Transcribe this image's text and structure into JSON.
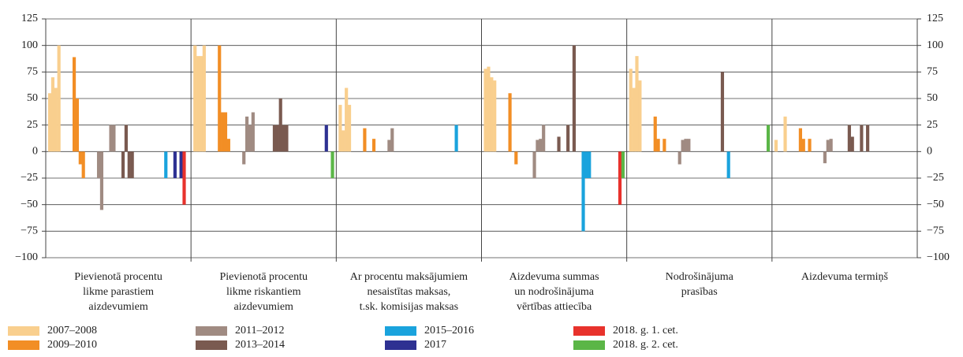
{
  "chart_data": {
    "type": "bar",
    "categories": [
      [
        "Pievienotā procentu",
        "likme parastiem",
        "aizdevumiem"
      ],
      [
        "Pievienotā procentu",
        "likme riskantiem",
        "aizdevumiem"
      ],
      [
        "Ar procentu maksājumiem",
        "nesaistītas maksas,",
        "t.sk. komisijas maksas"
      ],
      [
        "Aizdevuma summas",
        "un nodrošinājuma",
        "vērtības attiecība"
      ],
      [
        "Nodrošinājuma",
        "prasības"
      ],
      [
        "Aizdevuma termiņš"
      ]
    ],
    "ylim": [
      -100,
      125
    ],
    "yticks": [
      {
        "value": -100,
        "label": "−100"
      },
      {
        "value": -75,
        "label": "−75"
      },
      {
        "value": -50,
        "label": "−50"
      },
      {
        "value": -25,
        "label": "−25"
      },
      0,
      25,
      50,
      75,
      100,
      125
    ],
    "grid": true,
    "series": [
      {
        "name": "2007–2008",
        "color": "#f9cf8e",
        "values": [
          [
            55,
            70,
            60,
            100,
            0,
            0,
            0,
            0
          ],
          [
            100,
            90,
            90,
            100,
            0,
            0,
            0,
            0
          ],
          [
            44,
            20,
            60,
            44,
            0,
            0,
            0,
            0
          ],
          [
            78,
            80,
            70,
            67,
            0,
            0,
            0,
            0
          ],
          [
            78,
            60,
            90,
            67,
            0,
            0,
            0,
            0
          ],
          [
            11,
            0,
            0,
            33,
            0,
            0,
            0,
            0
          ]
        ]
      },
      {
        "name": "2009–2010",
        "color": "#f28e25",
        "values": [
          [
            89,
            50,
            -12,
            -25,
            0,
            0,
            0,
            0
          ],
          [
            100,
            37,
            37,
            12,
            0,
            0,
            0,
            0
          ],
          [
            22,
            0,
            0,
            12,
            0,
            0,
            0,
            0
          ],
          [
            55,
            0,
            -12,
            0,
            0,
            0,
            0,
            0
          ],
          [
            33,
            12,
            0,
            12,
            0,
            0,
            0,
            0
          ],
          [
            22,
            12,
            0,
            12,
            0,
            0,
            0,
            0
          ]
        ]
      },
      {
        "name": "2011–2012",
        "color": "#a08b82",
        "values": [
          [
            -25,
            -55,
            0,
            0,
            25,
            25,
            0,
            0
          ],
          [
            -12,
            33,
            25,
            37,
            0,
            0,
            0,
            0
          ],
          [
            11,
            22,
            0,
            0,
            0,
            0,
            0,
            0
          ],
          [
            -25,
            11,
            12,
            25,
            0,
            0,
            0,
            0
          ],
          [
            -12,
            11,
            12,
            12,
            0,
            0,
            0,
            0
          ],
          [
            -11,
            11,
            12,
            0,
            0,
            0,
            0,
            0
          ]
        ]
      },
      {
        "name": "2013–2014",
        "color": "#7a5a50",
        "values": [
          [
            -25,
            25,
            -25,
            -25,
            0,
            0,
            0,
            0
          ],
          [
            0,
            0,
            25,
            25,
            50,
            25,
            25,
            0
          ],
          [
            0,
            0,
            0,
            0,
            0,
            0,
            0,
            0
          ],
          [
            14,
            0,
            0,
            25,
            0,
            100,
            0,
            0
          ],
          [
            0,
            0,
            0,
            0,
            0,
            0,
            75,
            0
          ],
          [
            25,
            14,
            0,
            0,
            25,
            0,
            25,
            0
          ]
        ]
      },
      {
        "name": "2015–2016",
        "color": "#1aa3dd",
        "values": [
          [
            0,
            0,
            0,
            0,
            0,
            0,
            -25,
            0
          ],
          [
            0,
            0,
            0,
            0,
            0,
            0,
            0,
            0
          ],
          [
            0,
            0,
            0,
            0,
            0,
            0,
            25,
            0
          ],
          [
            -75,
            -25,
            -25,
            0,
            0,
            0,
            0,
            0
          ],
          [
            -25,
            0,
            0,
            0,
            0,
            0,
            0,
            0
          ],
          [
            0,
            0,
            0,
            0,
            0,
            0,
            0,
            0
          ]
        ]
      },
      {
        "name": "2017",
        "color": "#2e3192",
        "values": [
          [
            0,
            -25,
            0,
            -25
          ],
          [
            0,
            0,
            0,
            25
          ],
          [
            0,
            0,
            0,
            0
          ],
          [
            0,
            0,
            0,
            0
          ],
          [
            0,
            0,
            0,
            0
          ],
          [
            0,
            0,
            0,
            0
          ]
        ]
      },
      {
        "name": "2018. g. 1. cet.",
        "color": "#e8322c",
        "values": [
          [
            -50
          ],
          [
            0
          ],
          [
            0
          ],
          [
            -50
          ],
          [
            0
          ],
          [
            0
          ]
        ]
      },
      {
        "name": "2018. g. 2. cet.",
        "color": "#5bb647",
        "values": [
          [
            0
          ],
          [
            -25
          ],
          [
            0
          ],
          [
            -25
          ],
          [
            25
          ],
          [
            0
          ]
        ]
      }
    ]
  }
}
